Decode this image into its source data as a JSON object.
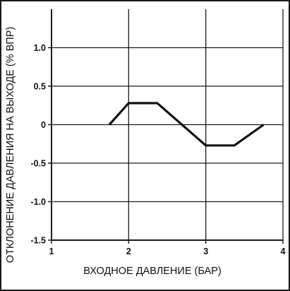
{
  "chart_data": {
    "type": "line",
    "title": "",
    "xlabel": "ВХОДНОЕ ДАВЛЕНИЕ (БАР)",
    "ylabel": "ОТКЛОНЕНИЕ ДАВЛЕНИЯ НА ВЫХОДЕ (% ВПР)",
    "xlim": [
      1,
      4
    ],
    "ylim": [
      -1.5,
      1.5
    ],
    "grid": true,
    "x_ticks": [
      "1",
      "2",
      "3",
      "4"
    ],
    "y_ticks": [
      "1.0",
      "0.5",
      "0",
      "-0.5",
      "-1.0",
      "-1.5"
    ],
    "series": [
      {
        "x": [
          1.75,
          2.0,
          2.37,
          3.0,
          3.37,
          3.75
        ],
        "y": [
          0.0,
          0.28,
          0.28,
          -0.27,
          -0.27,
          0.0
        ]
      }
    ],
    "colors": {
      "line": "#111111",
      "axis": "#1a1a1a",
      "grid": "#1a1a1a"
    }
  }
}
